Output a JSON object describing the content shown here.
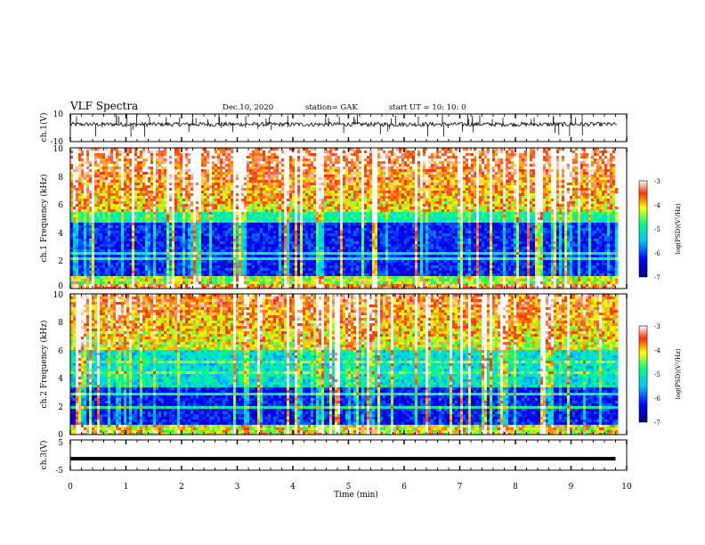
{
  "header": {
    "title": "VLF Spectra",
    "date": "Dec.10, 2020",
    "station": "station= GAK",
    "start": "start UT = 10: 10: 0"
  },
  "chart_data": [
    {
      "type": "line",
      "panel": "ch1-waveform",
      "ylabel": "ch.1(V)",
      "ylim": [
        -10,
        10
      ],
      "ytick_labels": [
        "10",
        "-10"
      ],
      "baseline_v": 2.5,
      "xlim": [
        0,
        10
      ]
    },
    {
      "type": "heatmap",
      "panel": "ch1-spectrogram",
      "ylabel": "ch.1 Frequency (kHz)",
      "ylim": [
        0,
        10
      ],
      "ytick_labels": [
        "0",
        "2",
        "4",
        "6",
        "8",
        "10"
      ],
      "colorbar": {
        "label": "log(PSD)(V²/Hz)",
        "range": [
          -7,
          -3
        ],
        "tick_labels": [
          "-3",
          "-4",
          "-5",
          "-6",
          "-7"
        ],
        "colors": [
          "#00007a",
          "#0000ff",
          "#00c8ff",
          "#00ff80",
          "#ffff00",
          "#ff3000",
          "#ffffff"
        ]
      }
    },
    {
      "type": "heatmap",
      "panel": "ch2-spectrogram",
      "ylabel": "ch.2 Frequency (kHz)",
      "ylim": [
        0,
        10
      ],
      "ytick_labels": [
        "0",
        "2",
        "4",
        "6",
        "8",
        "10"
      ],
      "colorbar": {
        "label": "log(PSD)(V²/Hz)",
        "range": [
          -7,
          -3
        ],
        "tick_labels": [
          "-3",
          "-4",
          "-5",
          "-6",
          "-7"
        ],
        "colors": [
          "#00007a",
          "#0000ff",
          "#00c8ff",
          "#00ff80",
          "#ffff00",
          "#ff3000",
          "#ffffff"
        ]
      }
    },
    {
      "type": "line",
      "panel": "ch3-waveform",
      "ylabel": "ch.3(V)",
      "ylim": [
        -5,
        5
      ],
      "ytick_labels": [
        "5",
        "-5"
      ],
      "x": [
        0,
        9.8
      ],
      "y": [
        -1.2,
        -1.2
      ]
    }
  ],
  "xaxis": {
    "label": "Time (min)",
    "xlim": [
      0,
      10
    ],
    "tick_labels": [
      "0",
      "1",
      "2",
      "3",
      "4",
      "5",
      "6",
      "7",
      "8",
      "9",
      "10"
    ]
  },
  "colors": {
    "trace": "#000000",
    "spectrum_low": "#00007a",
    "spectrum_high": "#ff3000"
  }
}
